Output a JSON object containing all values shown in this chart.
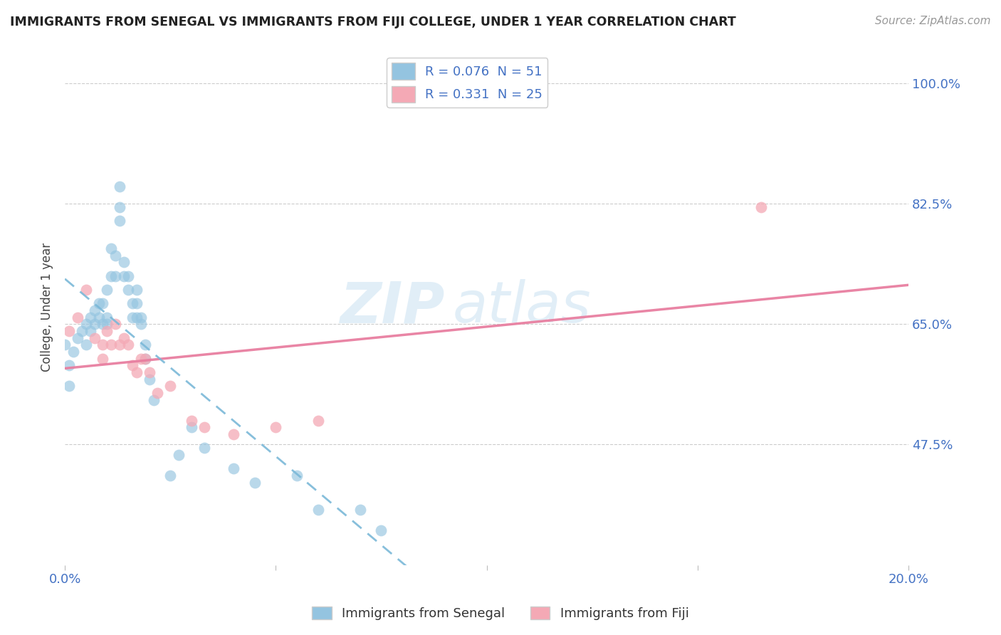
{
  "title": "IMMIGRANTS FROM SENEGAL VS IMMIGRANTS FROM FIJI COLLEGE, UNDER 1 YEAR CORRELATION CHART",
  "source_text": "Source: ZipAtlas.com",
  "ylabel": "College, Under 1 year",
  "xlim": [
    0.0,
    0.2
  ],
  "ylim": [
    0.3,
    1.05
  ],
  "ytick_labels": [
    "47.5%",
    "65.0%",
    "82.5%",
    "100.0%"
  ],
  "ytick_positions": [
    0.475,
    0.65,
    0.825,
    1.0
  ],
  "all_xticks": [
    0.0,
    0.05,
    0.1,
    0.15,
    0.2
  ],
  "xtick_show_labels": [
    "0.0%",
    "",
    "",
    "",
    "20.0%"
  ],
  "color_senegal": "#94c4e0",
  "color_fiji": "#f4a9b5",
  "trendline_senegal_color": "#7ab8d8",
  "trendline_fiji_color": "#e87fa0",
  "R_senegal": 0.076,
  "N_senegal": 51,
  "R_fiji": 0.331,
  "N_fiji": 25,
  "watermark_part1": "ZIP",
  "watermark_part2": "atlas",
  "senegal_x": [
    0.0,
    0.001,
    0.001,
    0.002,
    0.003,
    0.004,
    0.005,
    0.005,
    0.006,
    0.006,
    0.007,
    0.007,
    0.008,
    0.008,
    0.009,
    0.009,
    0.01,
    0.01,
    0.01,
    0.011,
    0.011,
    0.012,
    0.012,
    0.013,
    0.013,
    0.013,
    0.014,
    0.014,
    0.015,
    0.015,
    0.016,
    0.016,
    0.017,
    0.017,
    0.017,
    0.018,
    0.018,
    0.019,
    0.019,
    0.02,
    0.021,
    0.025,
    0.027,
    0.03,
    0.033,
    0.04,
    0.045,
    0.055,
    0.06,
    0.07,
    0.075
  ],
  "senegal_y": [
    0.62,
    0.59,
    0.56,
    0.61,
    0.63,
    0.64,
    0.62,
    0.65,
    0.64,
    0.66,
    0.65,
    0.67,
    0.66,
    0.68,
    0.65,
    0.68,
    0.66,
    0.65,
    0.7,
    0.72,
    0.76,
    0.72,
    0.75,
    0.8,
    0.82,
    0.85,
    0.72,
    0.74,
    0.7,
    0.72,
    0.66,
    0.68,
    0.68,
    0.66,
    0.7,
    0.65,
    0.66,
    0.6,
    0.62,
    0.57,
    0.54,
    0.43,
    0.46,
    0.5,
    0.47,
    0.44,
    0.42,
    0.43,
    0.38,
    0.38,
    0.35
  ],
  "fiji_x": [
    0.001,
    0.003,
    0.005,
    0.007,
    0.009,
    0.009,
    0.01,
    0.011,
    0.012,
    0.013,
    0.014,
    0.015,
    0.016,
    0.017,
    0.018,
    0.019,
    0.02,
    0.022,
    0.025,
    0.03,
    0.033,
    0.04,
    0.05,
    0.06,
    0.165
  ],
  "fiji_y": [
    0.64,
    0.66,
    0.7,
    0.63,
    0.62,
    0.6,
    0.64,
    0.62,
    0.65,
    0.62,
    0.63,
    0.62,
    0.59,
    0.58,
    0.6,
    0.6,
    0.58,
    0.55,
    0.56,
    0.51,
    0.5,
    0.49,
    0.5,
    0.51,
    0.82
  ]
}
